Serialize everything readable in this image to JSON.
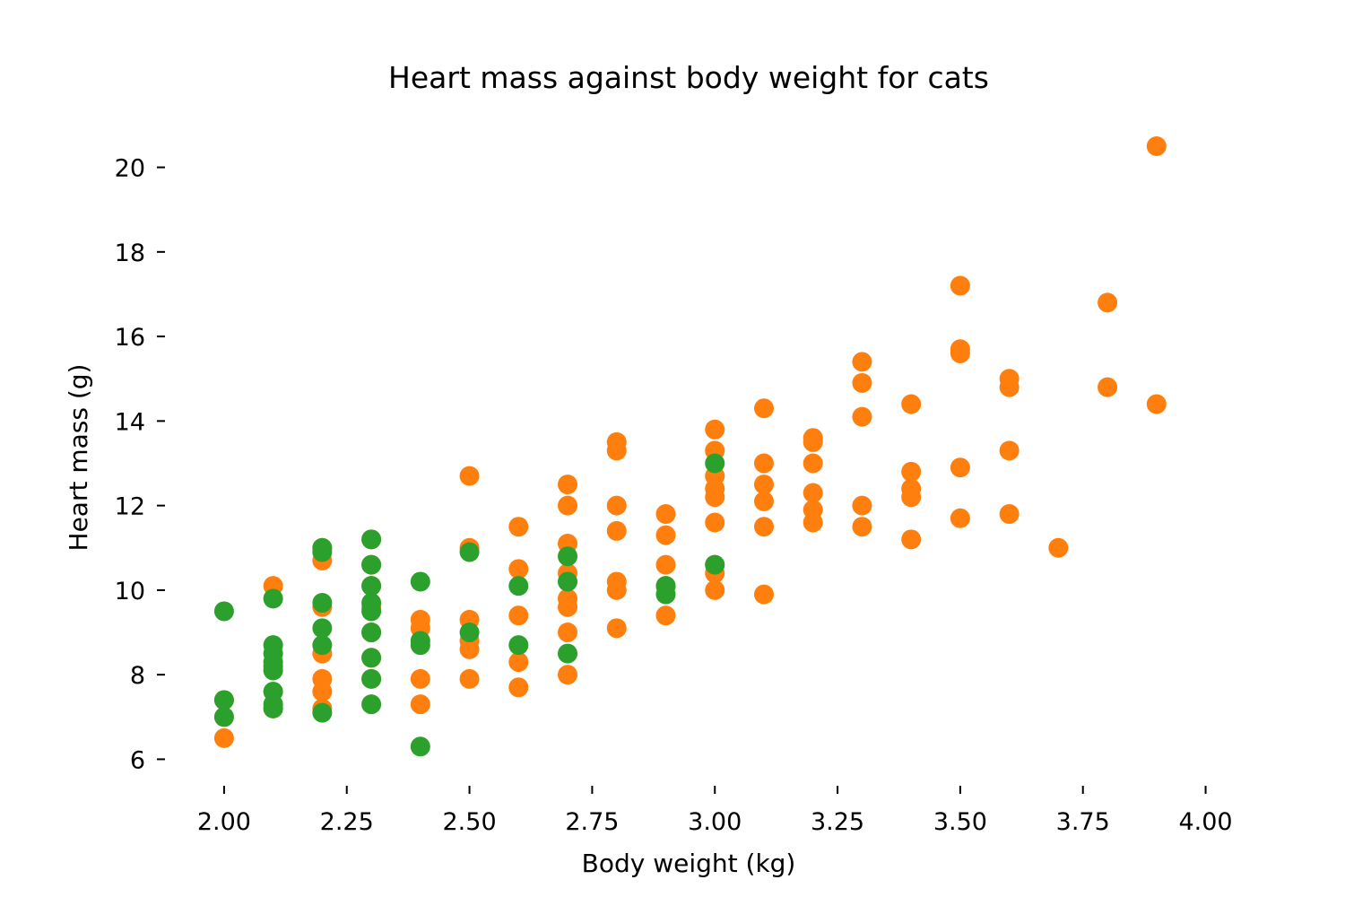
{
  "chart_data": {
    "type": "scatter",
    "title": "Heart mass against body weight for cats",
    "xlabel": "Body weight (kg)",
    "ylabel": "Heart mass (g)",
    "xlim": [
      1.89,
      4.02
    ],
    "ylim": [
      5.5,
      21.2
    ],
    "xticks": [
      "2.00",
      "2.25",
      "2.50",
      "2.75",
      "3.00",
      "3.25",
      "3.50",
      "3.75",
      "4.00"
    ],
    "yticks": [
      "6",
      "8",
      "10",
      "12",
      "14",
      "16",
      "18",
      "20"
    ],
    "grid": false,
    "legend": false,
    "series": [
      {
        "color": "#ff7f0e",
        "points": [
          [
            2.0,
            6.5
          ],
          [
            2.0,
            7.0
          ],
          [
            2.0,
            7.4
          ],
          [
            2.1,
            7.2
          ],
          [
            2.1,
            10.1
          ],
          [
            2.2,
            7.2
          ],
          [
            2.2,
            7.6
          ],
          [
            2.2,
            7.9
          ],
          [
            2.2,
            8.5
          ],
          [
            2.2,
            9.6
          ],
          [
            2.2,
            10.7
          ],
          [
            2.2,
            11.0
          ],
          [
            2.3,
            7.9
          ],
          [
            2.3,
            8.4
          ],
          [
            2.3,
            9.0
          ],
          [
            2.3,
            9.6
          ],
          [
            2.3,
            10.1
          ],
          [
            2.3,
            10.6
          ],
          [
            2.3,
            11.2
          ],
          [
            2.4,
            7.3
          ],
          [
            2.4,
            7.9
          ],
          [
            2.4,
            9.1
          ],
          [
            2.4,
            9.3
          ],
          [
            2.5,
            7.9
          ],
          [
            2.5,
            8.6
          ],
          [
            2.5,
            8.8
          ],
          [
            2.5,
            9.3
          ],
          [
            2.5,
            11.0
          ],
          [
            2.5,
            12.7
          ],
          [
            2.6,
            7.7
          ],
          [
            2.6,
            8.3
          ],
          [
            2.6,
            9.4
          ],
          [
            2.6,
            10.5
          ],
          [
            2.6,
            11.5
          ],
          [
            2.7,
            8.0
          ],
          [
            2.7,
            9.0
          ],
          [
            2.7,
            9.6
          ],
          [
            2.7,
            9.8
          ],
          [
            2.7,
            10.4
          ],
          [
            2.7,
            11.1
          ],
          [
            2.7,
            12.0
          ],
          [
            2.7,
            12.5
          ],
          [
            2.8,
            9.1
          ],
          [
            2.8,
            10.0
          ],
          [
            2.8,
            10.2
          ],
          [
            2.8,
            11.4
          ],
          [
            2.8,
            12.0
          ],
          [
            2.8,
            13.3
          ],
          [
            2.8,
            13.5
          ],
          [
            2.9,
            9.4
          ],
          [
            2.9,
            10.1
          ],
          [
            2.9,
            10.6
          ],
          [
            2.9,
            11.3
          ],
          [
            2.9,
            11.8
          ],
          [
            3.0,
            10.0
          ],
          [
            3.0,
            10.4
          ],
          [
            3.0,
            10.6
          ],
          [
            3.0,
            11.6
          ],
          [
            3.0,
            12.2
          ],
          [
            3.0,
            12.4
          ],
          [
            3.0,
            12.7
          ],
          [
            3.0,
            13.3
          ],
          [
            3.0,
            13.8
          ],
          [
            3.1,
            9.9
          ],
          [
            3.1,
            11.5
          ],
          [
            3.1,
            12.1
          ],
          [
            3.1,
            12.5
          ],
          [
            3.1,
            13.0
          ],
          [
            3.1,
            14.3
          ],
          [
            3.2,
            11.6
          ],
          [
            3.2,
            11.9
          ],
          [
            3.2,
            12.3
          ],
          [
            3.2,
            13.0
          ],
          [
            3.2,
            13.5
          ],
          [
            3.2,
            13.6
          ],
          [
            3.3,
            11.5
          ],
          [
            3.3,
            12.0
          ],
          [
            3.3,
            14.1
          ],
          [
            3.3,
            14.9
          ],
          [
            3.3,
            15.4
          ],
          [
            3.4,
            11.2
          ],
          [
            3.4,
            12.2
          ],
          [
            3.4,
            12.4
          ],
          [
            3.4,
            12.8
          ],
          [
            3.4,
            14.4
          ],
          [
            3.5,
            11.7
          ],
          [
            3.5,
            12.9
          ],
          [
            3.5,
            15.6
          ],
          [
            3.5,
            15.7
          ],
          [
            3.5,
            17.2
          ],
          [
            3.6,
            11.8
          ],
          [
            3.6,
            13.3
          ],
          [
            3.6,
            14.8
          ],
          [
            3.6,
            15.0
          ],
          [
            3.7,
            11.0
          ],
          [
            3.8,
            14.8
          ],
          [
            3.8,
            16.8
          ],
          [
            3.9,
            14.4
          ],
          [
            3.9,
            20.5
          ]
        ]
      },
      {
        "color": "#2ca02c",
        "points": [
          [
            2.0,
            7.0
          ],
          [
            2.0,
            7.4
          ],
          [
            2.0,
            9.5
          ],
          [
            2.1,
            7.2
          ],
          [
            2.1,
            7.3
          ],
          [
            2.1,
            7.6
          ],
          [
            2.1,
            8.1
          ],
          [
            2.1,
            8.2
          ],
          [
            2.1,
            8.3
          ],
          [
            2.1,
            8.5
          ],
          [
            2.1,
            8.7
          ],
          [
            2.1,
            9.8
          ],
          [
            2.2,
            7.1
          ],
          [
            2.2,
            8.7
          ],
          [
            2.2,
            9.1
          ],
          [
            2.2,
            9.7
          ],
          [
            2.2,
            10.9
          ],
          [
            2.2,
            11.0
          ],
          [
            2.3,
            7.3
          ],
          [
            2.3,
            7.9
          ],
          [
            2.3,
            8.4
          ],
          [
            2.3,
            9.0
          ],
          [
            2.3,
            9.5
          ],
          [
            2.3,
            9.7
          ],
          [
            2.3,
            10.1
          ],
          [
            2.3,
            10.6
          ],
          [
            2.3,
            11.2
          ],
          [
            2.4,
            6.3
          ],
          [
            2.4,
            8.7
          ],
          [
            2.4,
            8.8
          ],
          [
            2.4,
            10.2
          ],
          [
            2.5,
            9.0
          ],
          [
            2.5,
            10.9
          ],
          [
            2.6,
            8.7
          ],
          [
            2.6,
            10.1
          ],
          [
            2.7,
            8.5
          ],
          [
            2.7,
            10.2
          ],
          [
            2.7,
            10.8
          ],
          [
            2.9,
            9.9
          ],
          [
            2.9,
            10.1
          ],
          [
            3.0,
            10.6
          ],
          [
            3.0,
            13.0
          ]
        ]
      }
    ]
  }
}
